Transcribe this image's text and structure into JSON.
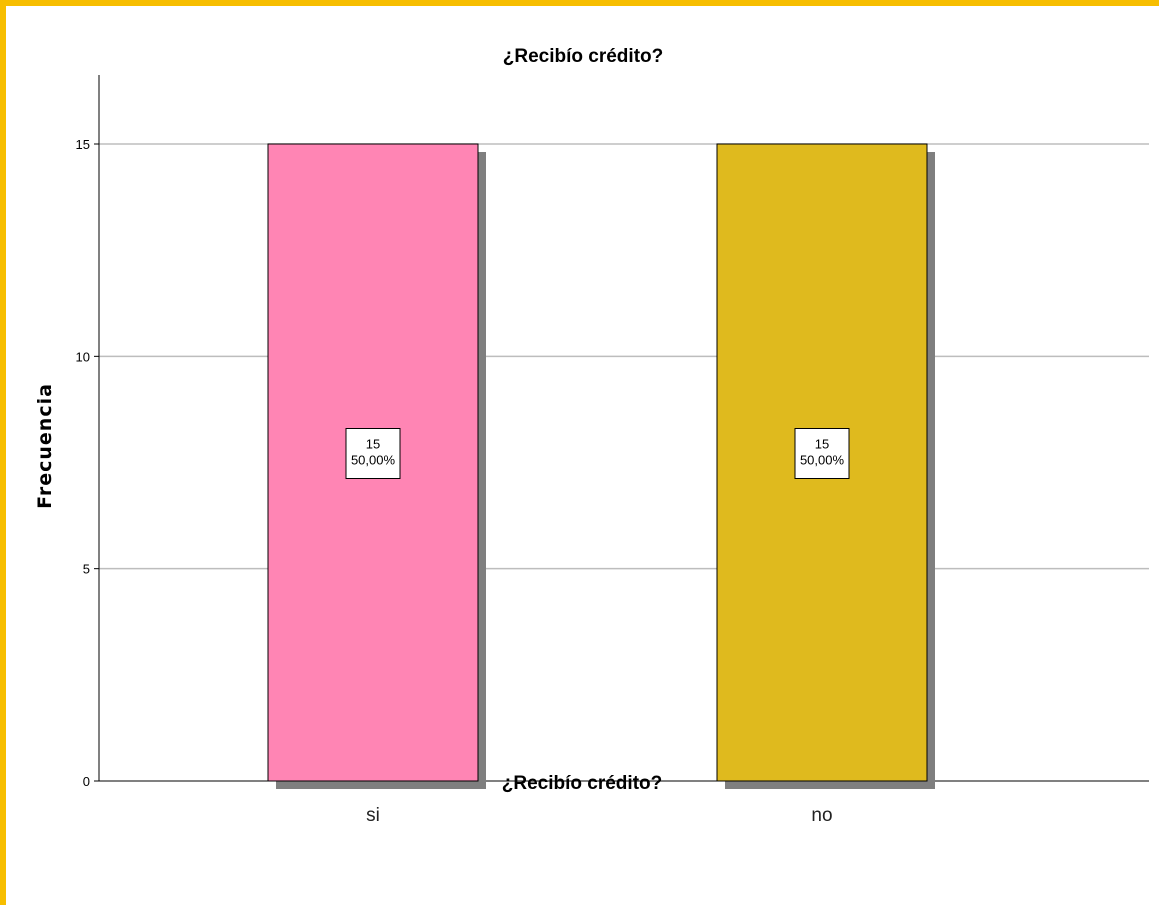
{
  "chart_data": {
    "type": "bar",
    "title": "¿Recibío crédito?",
    "xlabel": "¿Recibío crédito?",
    "ylabel": "Frecuencia",
    "categories": [
      "si",
      "no"
    ],
    "values": [
      15,
      15
    ],
    "percentages": [
      "50,00%",
      "50,00%"
    ],
    "ylim": [
      0,
      16.6
    ],
    "yticks": [
      0,
      5,
      10,
      15
    ],
    "grid": true,
    "legend": "none",
    "bar_colors": [
      "#ff85b4",
      "#dfba1e"
    ]
  },
  "frame_color": "#f7be00"
}
